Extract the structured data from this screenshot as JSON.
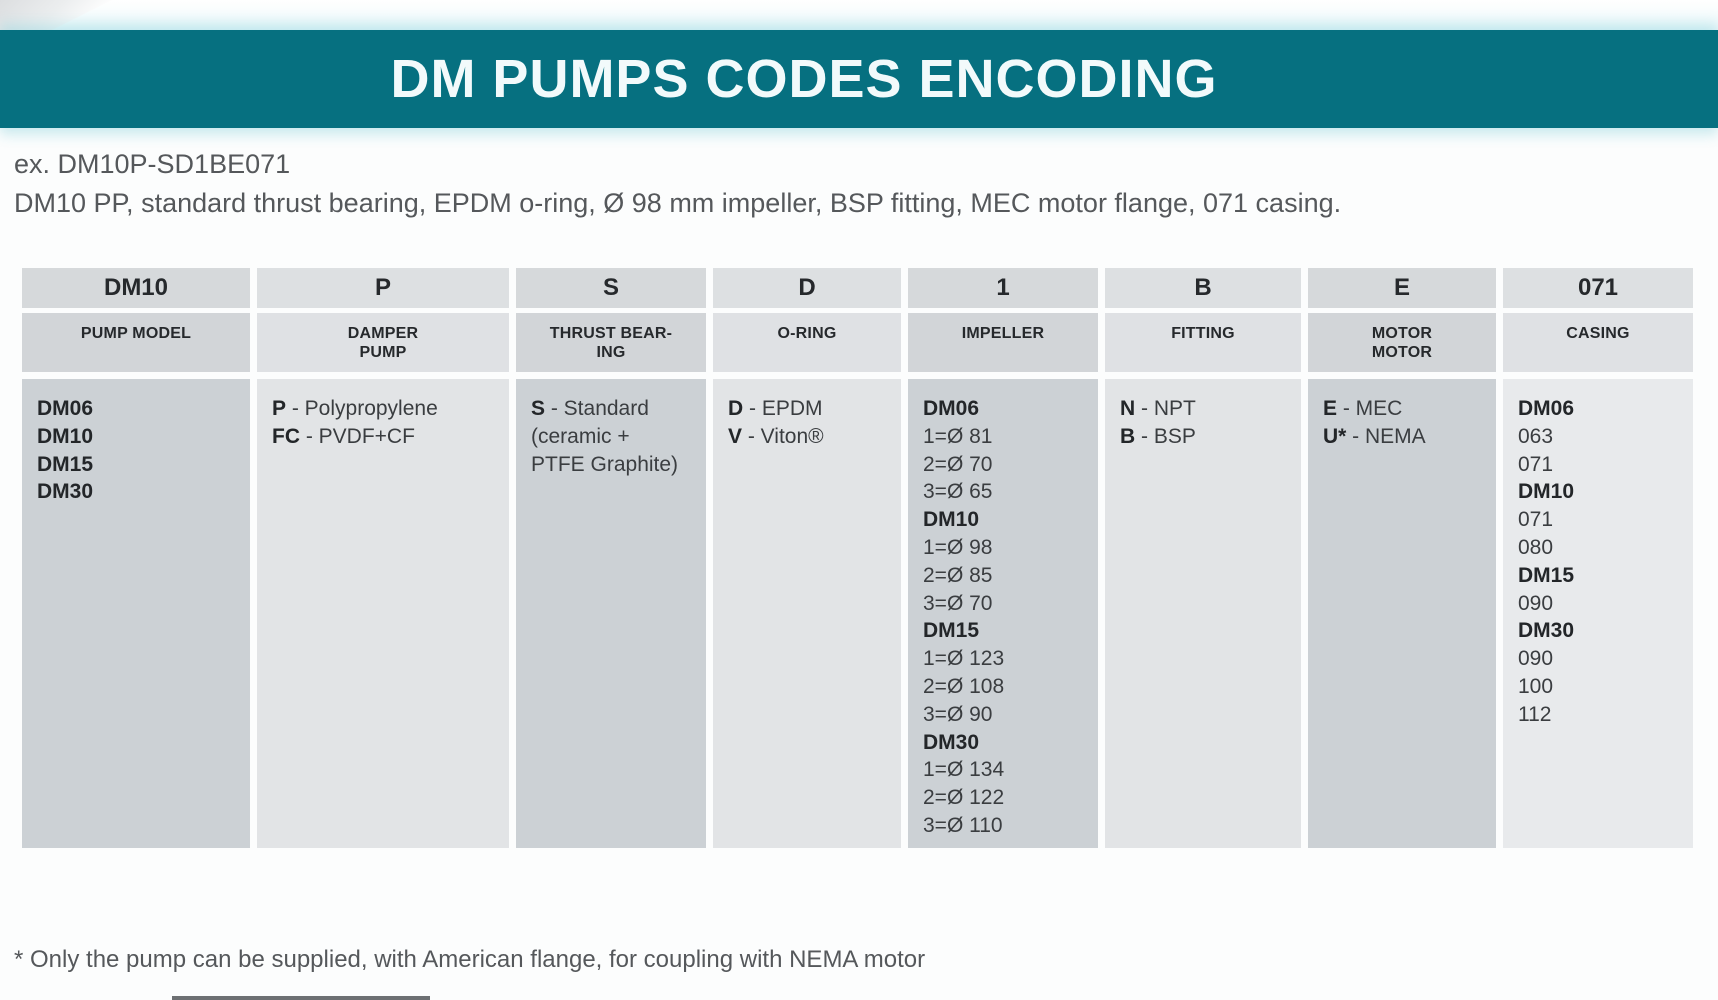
{
  "colors": {
    "banner_teal": "#067080",
    "header_text": "#26292c"
  },
  "banner": {
    "title": "DM PUMPS CODES ENCODING"
  },
  "example": {
    "line1": "ex. DM10P-SD1BE071",
    "line2": "DM10 PP, standard thrust bearing, EPDM o-ring, Ø 98 mm impeller, BSP fitting, MEC motor flange, 071 casing."
  },
  "table": {
    "columns": [
      {
        "id": "pump-model",
        "code": "DM10",
        "label": [
          "PUMP MODEL"
        ],
        "lines": [
          {
            "b": "DM06"
          },
          {
            "b": "DM10"
          },
          {
            "b": "DM15"
          },
          {
            "b": "DM30"
          }
        ]
      },
      {
        "id": "damper-pump",
        "code": "P",
        "label": [
          "DAMPER",
          "PUMP"
        ],
        "lines": [
          {
            "b": "P",
            "t": " - Polypropylene"
          },
          {
            "b": "FC",
            "t": " - PVDF+CF"
          }
        ]
      },
      {
        "id": "thrust-bearing",
        "code": "S",
        "label": [
          "THRUST BEAR-",
          "ING"
        ],
        "lines": [
          {
            "b": "S",
            "t": " - Standard"
          },
          {
            "t": "(ceramic +"
          },
          {
            "t": "PTFE Graphite)"
          }
        ]
      },
      {
        "id": "o-ring",
        "code": "D",
        "label": [
          "O-RING"
        ],
        "lines": [
          {
            "b": "D",
            "t": " - EPDM"
          },
          {
            "b": "V",
            "t": " - Viton®"
          }
        ]
      },
      {
        "id": "impeller",
        "code": "1",
        "label": [
          "IMPELLER"
        ],
        "lines": [
          {
            "b": "DM06"
          },
          {
            "t": "1=Ø 81"
          },
          {
            "t": "2=Ø 70"
          },
          {
            "t": "3=Ø 65"
          },
          {
            "b": "DM10"
          },
          {
            "t": "1=Ø 98"
          },
          {
            "t": "2=Ø 85"
          },
          {
            "t": "3=Ø 70"
          },
          {
            "b": "DM15"
          },
          {
            "t": "1=Ø 123"
          },
          {
            "t": "2=Ø 108"
          },
          {
            "t": "3=Ø 90"
          },
          {
            "b": "DM30"
          },
          {
            "t": "1=Ø 134"
          },
          {
            "t": "2=Ø 122"
          },
          {
            "t": "3=Ø 110"
          }
        ]
      },
      {
        "id": "fitting",
        "code": "B",
        "label": [
          "FITTING"
        ],
        "lines": [
          {
            "b": "N",
            "t": " - NPT"
          },
          {
            "b": "B",
            "t": " - BSP"
          }
        ]
      },
      {
        "id": "motor",
        "code": "E",
        "label": [
          "MOTOR",
          "MOTOR"
        ],
        "lines": [
          {
            "b": "E",
            "t": " - MEC"
          },
          {
            "b": "U*",
            "t": " - NEMA"
          }
        ]
      },
      {
        "id": "casing",
        "code": "071",
        "label": [
          "CASING"
        ],
        "lines": [
          {
            "b": "DM06"
          },
          {
            "t": "063"
          },
          {
            "t": "071"
          },
          {
            "b": "DM10"
          },
          {
            "t": "071"
          },
          {
            "t": "080"
          },
          {
            "b": "DM15"
          },
          {
            "t": "090"
          },
          {
            "b": "DM30"
          },
          {
            "t": "090"
          },
          {
            "t": "100"
          },
          {
            "t": "112"
          }
        ]
      }
    ]
  },
  "footnote": "* Only the pump can be supplied, with American flange, for coupling with NEMA motor"
}
